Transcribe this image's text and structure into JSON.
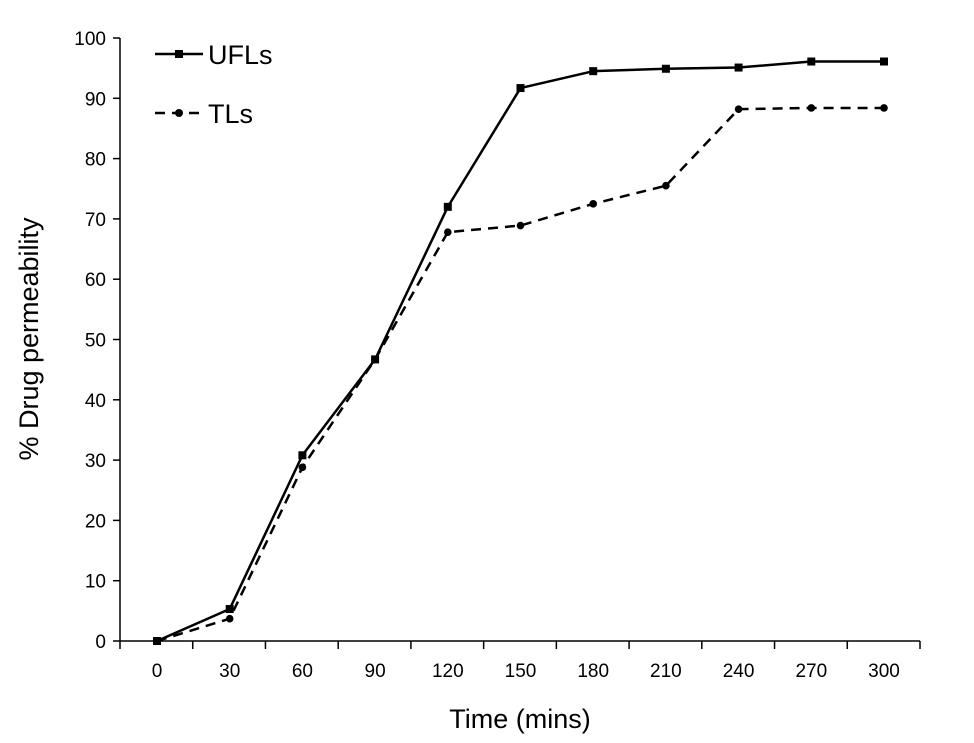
{
  "chart_data": {
    "type": "line",
    "title": "",
    "xlabel": "Time (mins)",
    "ylabel": "% Drug permeability",
    "categories": [
      "0",
      "30",
      "60",
      "90",
      "120",
      "150",
      "180",
      "210",
      "240",
      "270",
      "300"
    ],
    "ylim": [
      0,
      100
    ],
    "yticks": [
      "0",
      "10",
      "20",
      "30",
      "40",
      "50",
      "60",
      "70",
      "80",
      "90",
      "100"
    ],
    "grid": false,
    "legend_position": "top-left",
    "series": [
      {
        "name": "UFLs",
        "line_style": "solid",
        "marker": "square",
        "color": "#000000",
        "values": [
          0,
          5.3,
          30.8,
          46.7,
          72.0,
          91.7,
          94.5,
          94.9,
          95.1,
          96.1,
          96.1
        ]
      },
      {
        "name": "TLs",
        "line_style": "dashed",
        "marker": "circle",
        "color": "#000000",
        "values": [
          0,
          3.7,
          28.8,
          46.7,
          67.8,
          68.9,
          72.5,
          75.5,
          88.2,
          88.4,
          88.4
        ]
      }
    ]
  }
}
